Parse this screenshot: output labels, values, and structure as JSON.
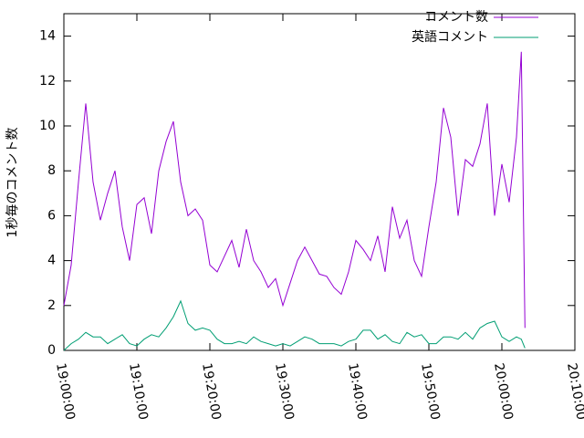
{
  "chart_data": {
    "type": "line",
    "ylabel": "1秒毎のコメント数",
    "x": [
      "19:00:00",
      "19:01:00",
      "19:02:00",
      "19:03:00",
      "19:04:00",
      "19:05:00",
      "19:06:00",
      "19:07:00",
      "19:08:00",
      "19:09:00",
      "19:10:00",
      "19:11:00",
      "19:12:00",
      "19:13:00",
      "19:14:00",
      "19:15:00",
      "19:16:00",
      "19:17:00",
      "19:18:00",
      "19:19:00",
      "19:20:00",
      "19:21:00",
      "19:22:00",
      "19:23:00",
      "19:24:00",
      "19:25:00",
      "19:26:00",
      "19:27:00",
      "19:28:00",
      "19:29:00",
      "19:30:00",
      "19:31:00",
      "19:32:00",
      "19:33:00",
      "19:34:00",
      "19:35:00",
      "19:36:00",
      "19:37:00",
      "19:38:00",
      "19:39:00",
      "19:40:00",
      "19:41:00",
      "19:42:00",
      "19:43:00",
      "19:44:00",
      "19:45:00",
      "19:46:00",
      "19:47:00",
      "19:48:00",
      "19:49:00",
      "19:50:00",
      "19:51:00",
      "19:52:00",
      "19:53:00",
      "19:54:00",
      "19:55:00",
      "19:56:00",
      "19:57:00",
      "19:58:00",
      "19:59:00",
      "20:00:00",
      "20:01:00",
      "20:02:00",
      "20:02:40",
      "20:03:10"
    ],
    "series": [
      {
        "name": "コメント数",
        "color": "#9400d3",
        "values": [
          2.0,
          3.8,
          7.5,
          11.0,
          7.5,
          5.8,
          7.0,
          8.0,
          5.5,
          4.0,
          6.5,
          6.8,
          5.2,
          8.0,
          9.3,
          10.2,
          7.5,
          6.0,
          6.3,
          5.8,
          3.8,
          3.5,
          4.2,
          4.9,
          3.7,
          5.4,
          4.0,
          3.5,
          2.8,
          3.2,
          2.0,
          3.0,
          4.0,
          4.6,
          4.0,
          3.4,
          3.3,
          2.8,
          2.5,
          3.5,
          4.9,
          4.5,
          4.0,
          5.1,
          3.5,
          6.4,
          5.0,
          5.8,
          4.0,
          3.3,
          5.5,
          7.5,
          10.8,
          9.5,
          6.0,
          8.5,
          8.2,
          9.2,
          11.0,
          6.0,
          8.3,
          6.6,
          9.5,
          13.3,
          1.0
        ]
      },
      {
        "name": "英語コメント",
        "color": "#009e73",
        "values": [
          0,
          0.3,
          0.5,
          0.8,
          0.6,
          0.6,
          0.3,
          0.5,
          0.7,
          0.3,
          0.2,
          0.5,
          0.7,
          0.6,
          1.0,
          1.5,
          2.2,
          1.2,
          0.9,
          1.0,
          0.9,
          0.5,
          0.3,
          0.3,
          0.4,
          0.3,
          0.6,
          0.4,
          0.3,
          0.2,
          0.3,
          0.2,
          0.4,
          0.6,
          0.5,
          0.3,
          0.3,
          0.3,
          0.2,
          0.4,
          0.5,
          0.9,
          0.9,
          0.5,
          0.7,
          0.4,
          0.3,
          0.8,
          0.6,
          0.7,
          0.3,
          0.3,
          0.6,
          0.6,
          0.5,
          0.8,
          0.5,
          1.0,
          1.2,
          1.3,
          0.6,
          0.4,
          0.6,
          0.5,
          0.1
        ]
      }
    ],
    "xlim": [
      "19:00:00",
      "20:10:00"
    ],
    "xticks": [
      "19:00:00",
      "19:10:00",
      "19:20:00",
      "19:30:00",
      "19:40:00",
      "19:50:00",
      "20:00:00",
      "20:10:00"
    ],
    "ylim": [
      0,
      15
    ],
    "yticks": [
      0,
      2,
      4,
      6,
      8,
      10,
      12,
      14
    ],
    "legend": "top-right"
  }
}
